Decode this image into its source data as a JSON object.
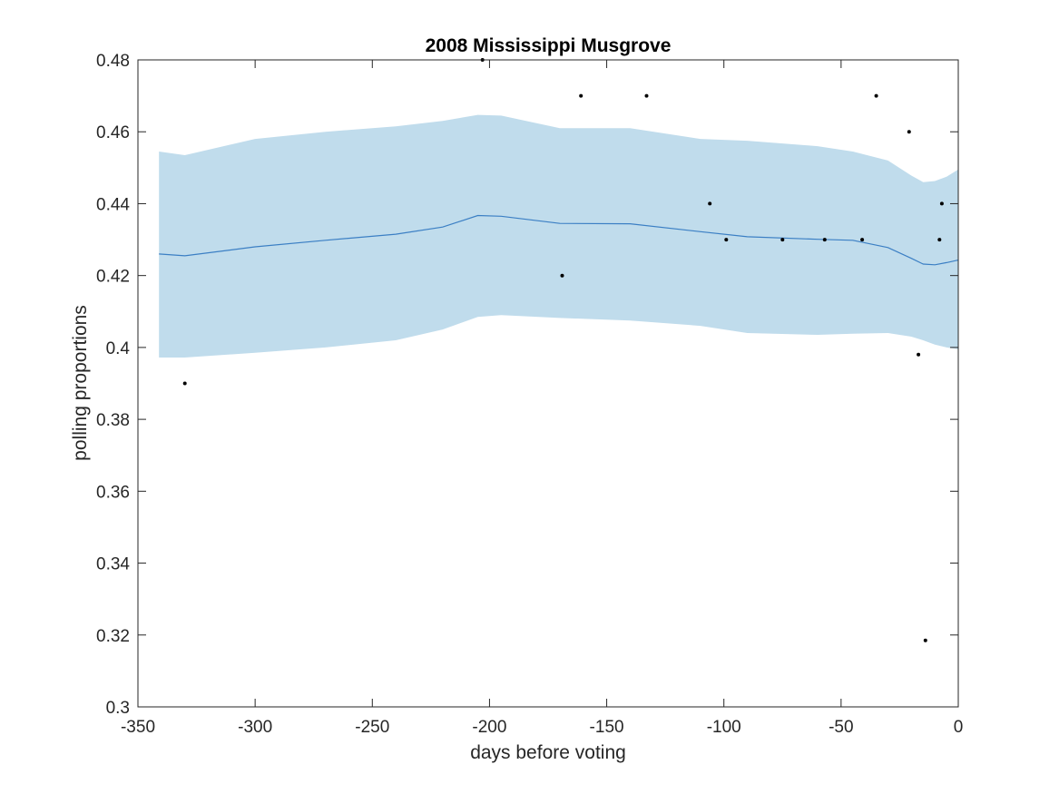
{
  "chart_data": {
    "type": "scatter",
    "title": "2008 Mississippi Musgrove",
    "xlabel": "days before voting",
    "ylabel": "polling proportions",
    "xlim": [
      -350,
      0
    ],
    "ylim": [
      0.3,
      0.48
    ],
    "xticks": [
      -350,
      -300,
      -250,
      -200,
      -150,
      -100,
      -50,
      0
    ],
    "yticks": [
      0.3,
      0.32,
      0.34,
      0.36,
      0.38,
      0.4,
      0.42,
      0.44,
      0.46,
      0.48
    ],
    "xtick_labels": [
      "-350",
      "-300",
      "-250",
      "-200",
      "-150",
      "-100",
      "-50",
      "0"
    ],
    "ytick_labels": [
      "0.3",
      "0.32",
      "0.34",
      "0.36",
      "0.38",
      "0.4",
      "0.42",
      "0.44",
      "0.46",
      "0.48"
    ],
    "grid": false,
    "colors": {
      "band": "#c0dcec",
      "trend": "#3b7fc4",
      "points": "#000000",
      "axes": "#262626"
    },
    "trend": {
      "x": [
        -341,
        -330,
        -300,
        -270,
        -240,
        -220,
        -205,
        -195,
        -170,
        -140,
        -110,
        -90,
        -60,
        -45,
        -30,
        -20,
        -15,
        -10,
        -5,
        0
      ],
      "y": [
        0.426,
        0.4255,
        0.428,
        0.4298,
        0.4315,
        0.4335,
        0.4367,
        0.4365,
        0.4345,
        0.4344,
        0.4322,
        0.4308,
        0.4301,
        0.4298,
        0.4278,
        0.4248,
        0.4232,
        0.423,
        0.4236,
        0.4243
      ]
    },
    "band": {
      "x": [
        -341,
        -330,
        -300,
        -270,
        -240,
        -220,
        -205,
        -195,
        -170,
        -140,
        -110,
        -90,
        -60,
        -45,
        -30,
        -20,
        -15,
        -10,
        -5,
        0
      ],
      "upper": [
        0.4545,
        0.4535,
        0.458,
        0.46,
        0.4615,
        0.463,
        0.4647,
        0.4645,
        0.461,
        0.461,
        0.458,
        0.4575,
        0.456,
        0.4545,
        0.452,
        0.4478,
        0.446,
        0.4463,
        0.4475,
        0.4495
      ],
      "lower": [
        0.3972,
        0.3972,
        0.3985,
        0.4,
        0.402,
        0.405,
        0.4085,
        0.409,
        0.4082,
        0.4075,
        0.406,
        0.404,
        0.4035,
        0.4038,
        0.404,
        0.403,
        0.402,
        0.4008,
        0.4,
        0.3995
      ]
    },
    "points": {
      "x": [
        -330,
        -203,
        -169,
        -161,
        -133,
        -106,
        -99,
        -75,
        -57,
        -41,
        -35,
        -21,
        -17,
        -14,
        -8,
        -7
      ],
      "y": [
        0.39,
        0.48,
        0.42,
        0.47,
        0.47,
        0.44,
        0.43,
        0.43,
        0.43,
        0.43,
        0.47,
        0.46,
        0.398,
        0.3185,
        0.43,
        0.44
      ]
    }
  }
}
